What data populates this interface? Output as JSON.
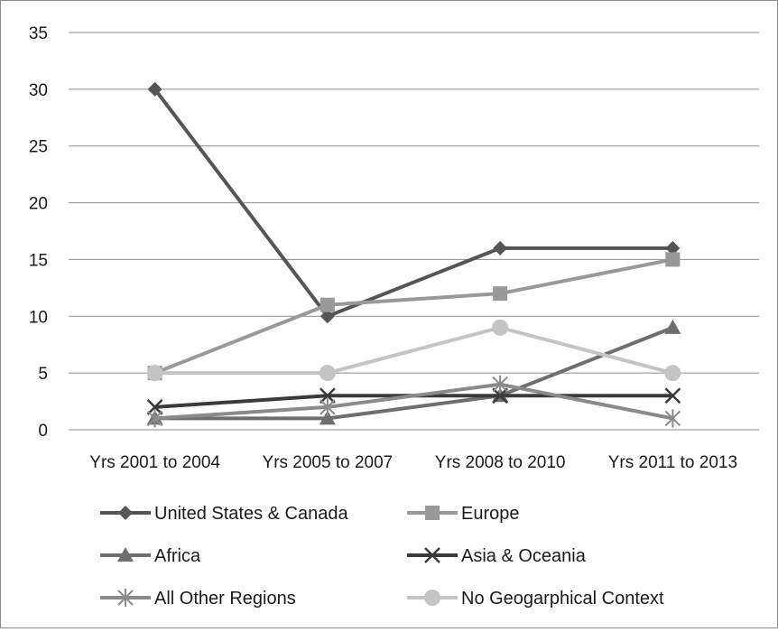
{
  "chart_data": {
    "type": "line",
    "title": "",
    "xlabel": "",
    "ylabel": "",
    "categories": [
      "Yrs 2001 to 2004",
      "Yrs 2005 to 2007",
      "Yrs 2008 to 2010",
      "Yrs 2011 to 2013"
    ],
    "ylim": [
      0,
      35
    ],
    "yticks": [
      0,
      5,
      10,
      15,
      20,
      25,
      30,
      35
    ],
    "grid": "horizontal",
    "legend_position": "bottom",
    "series": [
      {
        "name": "United States & Canada",
        "values": [
          30,
          10,
          16,
          16
        ],
        "color": "#555555",
        "marker": "diamond"
      },
      {
        "name": "Europe",
        "values": [
          5,
          11,
          12,
          15
        ],
        "color": "#999999",
        "marker": "square"
      },
      {
        "name": "Africa",
        "values": [
          1,
          1,
          3,
          9
        ],
        "color": "#6e6e6e",
        "marker": "triangle"
      },
      {
        "name": "Asia & Oceania",
        "values": [
          2,
          3,
          3,
          3
        ],
        "color": "#3a3a3a",
        "marker": "x"
      },
      {
        "name": "All Other Regions",
        "values": [
          1,
          2,
          4,
          1
        ],
        "color": "#8a8a8a",
        "marker": "asterisk"
      },
      {
        "name": "No Geogarphical Context",
        "values": [
          5,
          5,
          9,
          5
        ],
        "color": "#c4c4c4",
        "marker": "circle"
      }
    ]
  }
}
